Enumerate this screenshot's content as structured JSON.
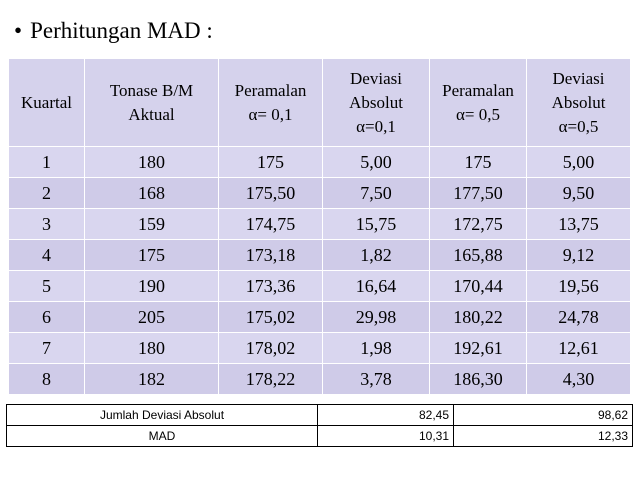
{
  "title": {
    "bullet": "•",
    "text": "Perhitungan MAD :"
  },
  "table": {
    "headers": [
      [
        "Kuartal"
      ],
      [
        "Tonase B/M",
        "Aktual"
      ],
      [
        "Peramalan",
        "α= 0,1"
      ],
      [
        "Deviasi",
        "Absolut",
        "α=0,1"
      ],
      [
        "Peramalan",
        "α= 0,5"
      ],
      [
        "Deviasi",
        "Absolut",
        "α=0,5"
      ]
    ],
    "rows": [
      [
        "1",
        "180",
        "175",
        "5,00",
        "175",
        "5,00"
      ],
      [
        "2",
        "168",
        "175,50",
        "7,50",
        "177,50",
        "9,50"
      ],
      [
        "3",
        "159",
        "174,75",
        "15,75",
        "172,75",
        "13,75"
      ],
      [
        "4",
        "175",
        "173,18",
        "1,82",
        "165,88",
        "9,12"
      ],
      [
        "5",
        "190",
        "173,36",
        "16,64",
        "170,44",
        "19,56"
      ],
      [
        "6",
        "205",
        "175,02",
        "29,98",
        "180,22",
        "24,78"
      ],
      [
        "7",
        "180",
        "178,02",
        "1,98",
        "192,61",
        "12,61"
      ],
      [
        "8",
        "182",
        "178,22",
        "3,78",
        "186,30",
        "4,30"
      ]
    ]
  },
  "summary": {
    "jumlah": {
      "label": "Jumlah Deviasi Absolut",
      "alpha01": "82,45",
      "alpha05": "98,62"
    },
    "mad": {
      "label": "MAD",
      "alpha01": "10,31",
      "alpha05": "12,33"
    }
  }
}
